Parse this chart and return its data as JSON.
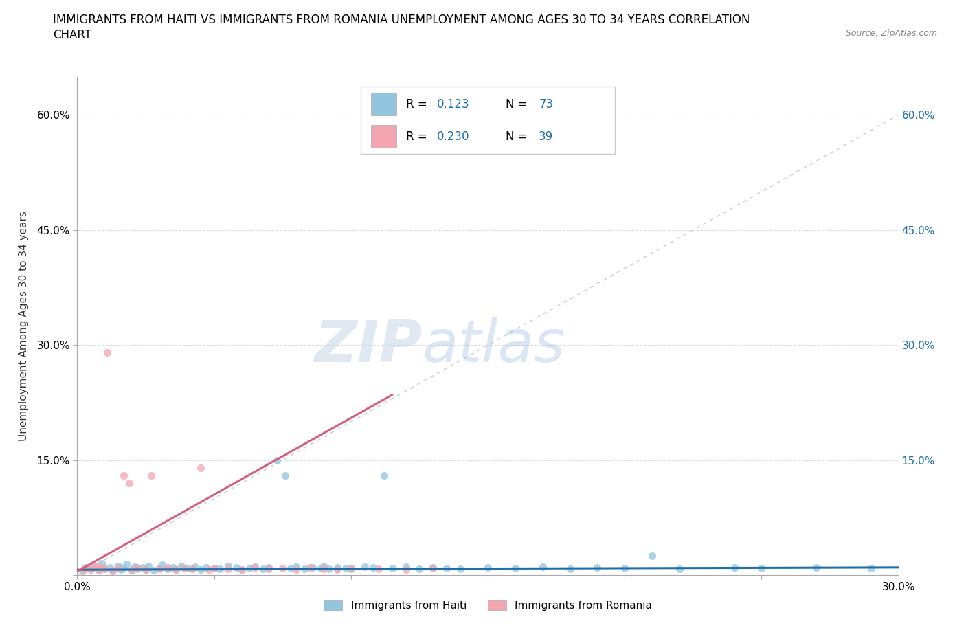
{
  "title_line1": "IMMIGRANTS FROM HAITI VS IMMIGRANTS FROM ROMANIA UNEMPLOYMENT AMONG AGES 30 TO 34 YEARS CORRELATION",
  "title_line2": "CHART",
  "source": "Source: ZipAtlas.com",
  "ylabel": "Unemployment Among Ages 30 to 34 years",
  "haiti_color": "#92C5DE",
  "romania_color": "#F4A6B0",
  "haiti_trend_color": "#1E6FA8",
  "romania_trend_color": "#D4607A",
  "diag_color": "#CCCCCC",
  "watermark_zip": "ZIP",
  "watermark_atlas": "atlas",
  "haiti_label": "Immigrants from Haiti",
  "romania_label": "Immigrants from Romania",
  "xlim": [
    0.0,
    0.3
  ],
  "ylim": [
    0.0,
    0.65
  ],
  "xticks": [
    0.0,
    0.05,
    0.1,
    0.15,
    0.2,
    0.25,
    0.3
  ],
  "yticks": [
    0.0,
    0.15,
    0.3,
    0.45,
    0.6
  ],
  "blue_label_color": "#1E6FA8",
  "legend_R_haiti": "0.123",
  "legend_N_haiti": "73",
  "legend_R_romania": "0.230",
  "legend_N_romania": "39",
  "haiti_x": [
    0.002,
    0.003,
    0.005,
    0.006,
    0.008,
    0.009,
    0.01,
    0.012,
    0.013,
    0.015,
    0.016,
    0.017,
    0.018,
    0.02,
    0.021,
    0.022,
    0.024,
    0.025,
    0.026,
    0.028,
    0.03,
    0.031,
    0.033,
    0.035,
    0.036,
    0.038,
    0.04,
    0.042,
    0.043,
    0.045,
    0.047,
    0.05,
    0.052,
    0.055,
    0.058,
    0.06,
    0.063,
    0.065,
    0.068,
    0.07,
    0.073,
    0.076,
    0.078,
    0.08,
    0.083,
    0.086,
    0.089,
    0.09,
    0.092,
    0.095,
    0.098,
    0.1,
    0.105,
    0.108,
    0.112,
    0.115,
    0.12,
    0.125,
    0.13,
    0.135,
    0.14,
    0.15,
    0.16,
    0.17,
    0.18,
    0.19,
    0.2,
    0.21,
    0.22,
    0.24,
    0.25,
    0.27,
    0.29
  ],
  "haiti_y": [
    0.005,
    0.01,
    0.008,
    0.012,
    0.006,
    0.015,
    0.008,
    0.01,
    0.005,
    0.012,
    0.007,
    0.009,
    0.014,
    0.006,
    0.011,
    0.008,
    0.01,
    0.007,
    0.012,
    0.006,
    0.009,
    0.013,
    0.008,
    0.01,
    0.007,
    0.012,
    0.009,
    0.008,
    0.011,
    0.007,
    0.01,
    0.009,
    0.008,
    0.012,
    0.01,
    0.007,
    0.009,
    0.011,
    0.008,
    0.01,
    0.15,
    0.13,
    0.009,
    0.011,
    0.008,
    0.01,
    0.009,
    0.012,
    0.008,
    0.01,
    0.009,
    0.008,
    0.011,
    0.01,
    0.13,
    0.009,
    0.011,
    0.008,
    0.01,
    0.009,
    0.008,
    0.01,
    0.009,
    0.011,
    0.008,
    0.01,
    0.009,
    0.025,
    0.008,
    0.01,
    0.009,
    0.01,
    0.009
  ],
  "romania_x": [
    0.002,
    0.003,
    0.004,
    0.005,
    0.006,
    0.007,
    0.008,
    0.009,
    0.01,
    0.011,
    0.013,
    0.015,
    0.017,
    0.019,
    0.02,
    0.022,
    0.025,
    0.027,
    0.03,
    0.033,
    0.036,
    0.039,
    0.042,
    0.045,
    0.048,
    0.05,
    0.055,
    0.06,
    0.065,
    0.07,
    0.075,
    0.08,
    0.085,
    0.09,
    0.095,
    0.1,
    0.11,
    0.12,
    0.13
  ],
  "romania_y": [
    0.006,
    0.008,
    0.01,
    0.007,
    0.009,
    0.012,
    0.007,
    0.01,
    0.008,
    0.29,
    0.006,
    0.009,
    0.13,
    0.12,
    0.007,
    0.01,
    0.007,
    0.13,
    0.008,
    0.01,
    0.007,
    0.009,
    0.008,
    0.14,
    0.007,
    0.009,
    0.008,
    0.007,
    0.01,
    0.008,
    0.009,
    0.007,
    0.01,
    0.008,
    0.007,
    0.009,
    0.008,
    0.007,
    0.009
  ],
  "haiti_trend_x0": 0.0,
  "haiti_trend_x1": 0.3,
  "haiti_trend_y0": 0.007,
  "haiti_trend_y1": 0.01,
  "romania_trend_x0": 0.0,
  "romania_trend_x1": 0.115,
  "romania_trend_y0": 0.005,
  "romania_trend_y1": 0.235,
  "title_fontsize": 12,
  "tick_fontsize": 11,
  "background_color": "#ffffff",
  "grid_color": "#DDDDDD"
}
